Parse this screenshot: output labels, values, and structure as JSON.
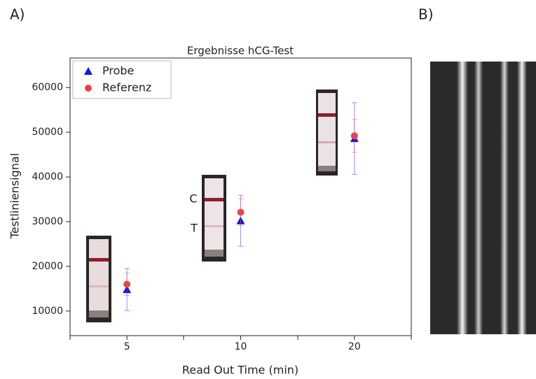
{
  "panels": [
    "A)",
    "B)"
  ],
  "chart_data": {
    "type": "scatter",
    "title": "Ergebnisse hCG-Test",
    "x_label": "Read Out Time (min)",
    "y_label": "Testliniensignal",
    "categories": [
      "5",
      "10",
      "20"
    ],
    "series": [
      {
        "name": "Probe",
        "color": "#1414e6",
        "marker": "triangle",
        "values": [
          14800,
          30200,
          48600
        ],
        "errors": [
          4700,
          5700,
          8000
        ]
      },
      {
        "name": "Referenz",
        "color": "#e84646",
        "marker": "circle",
        "values": [
          16000,
          32100,
          49200
        ],
        "errors": [
          2500,
          3000,
          3700
        ]
      }
    ],
    "annotations": [
      "C",
      "T"
    ],
    "ylim": [
      4500,
      66600
    ],
    "yticks": [
      10000,
      20000,
      30000,
      40000,
      50000,
      60000
    ],
    "legend": "upper left"
  }
}
